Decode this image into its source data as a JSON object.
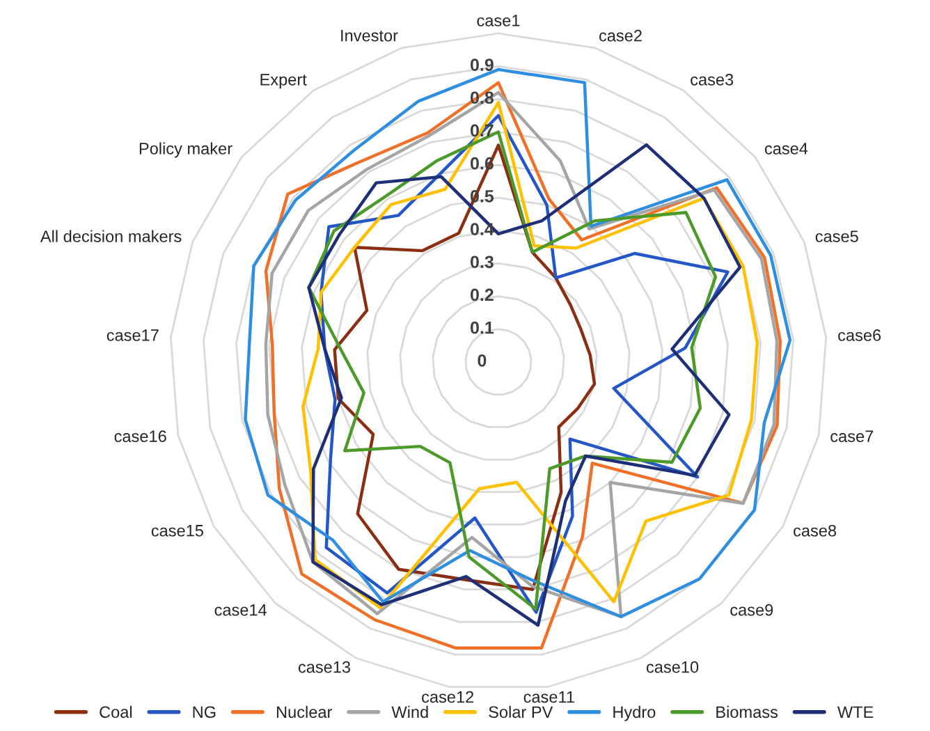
{
  "chart_data": {
    "type": "radar",
    "categories": [
      "case1",
      "case2",
      "case3",
      "case4",
      "case5",
      "case6",
      "case7",
      "case8",
      "case9",
      "case10",
      "case11",
      "case12",
      "case13",
      "case14",
      "case15",
      "case16",
      "case17",
      "All decision makers",
      "Policy maker",
      "Expert",
      "Investor"
    ],
    "series": [
      {
        "name": "Coal",
        "color": "#8b2f12",
        "values": [
          0.66,
          0.35,
          0.31,
          0.28,
          0.27,
          0.28,
          0.3,
          0.28,
          0.27,
          0.44,
          0.7,
          0.67,
          0.7,
          0.63,
          0.44,
          0.5,
          0.5,
          0.43,
          0.56,
          0.41,
          0.41
        ]
      },
      {
        "name": "NG",
        "color": "#2457c5",
        "values": [
          0.75,
          0.5,
          0.31,
          0.53,
          0.75,
          0.57,
          0.36,
          0.7,
          0.32,
          0.52,
          0.77,
          0.48,
          0.78,
          0.77,
          0.59,
          0.51,
          0.53,
          0.58,
          0.66,
          0.54,
          0.6
        ]
      },
      {
        "name": "Nuclear",
        "color": "#f07028",
        "values": [
          0.85,
          0.52,
          0.45,
          0.85,
          0.87,
          0.86,
          0.87,
          0.86,
          0.42,
          0.59,
          0.88,
          0.88,
          0.87,
          0.88,
          0.77,
          0.7,
          0.69,
          0.76,
          0.82,
          0.74,
          0.73
        ]
      },
      {
        "name": "Wind",
        "color": "#a5a5a5",
        "values": [
          0.82,
          0.64,
          0.49,
          0.84,
          0.86,
          0.85,
          0.86,
          0.86,
          0.5,
          0.86,
          0.69,
          0.54,
          0.85,
          0.83,
          0.75,
          0.72,
          0.71,
          0.74,
          0.74,
          0.71,
          0.72
        ]
      },
      {
        "name": "Solar PV",
        "color": "#ffc000",
        "values": [
          0.79,
          0.37,
          0.42,
          0.8,
          0.8,
          0.79,
          0.79,
          0.81,
          0.66,
          0.81,
          0.37,
          0.39,
          0.83,
          0.82,
          0.66,
          0.61,
          0.55,
          0.58,
          0.56,
          0.58,
          0.55
        ]
      },
      {
        "name": "Hydro",
        "color": "#2e8ee0",
        "values": [
          0.89,
          0.89,
          0.5,
          0.89,
          0.89,
          0.89,
          0.83,
          0.9,
          0.9,
          0.86,
          0.67,
          0.58,
          0.81,
          0.74,
          0.81,
          0.79,
          0.76,
          0.8,
          0.79,
          0.78,
          0.83
        ]
      },
      {
        "name": "Biomass",
        "color": "#4c9a2a",
        "values": [
          0.7,
          0.35,
          0.52,
          0.73,
          0.71,
          0.59,
          0.63,
          0.61,
          0.39,
          0.36,
          0.76,
          0.6,
          0.34,
          0.35,
          0.54,
          0.42,
          0.48,
          0.62,
          0.64,
          0.61,
          0.64
        ]
      },
      {
        "name": "WTE",
        "color": "#1e2f78",
        "values": [
          0.39,
          0.45,
          0.8,
          0.8,
          0.79,
          0.53,
          0.72,
          0.69,
          0.39,
          0.47,
          0.81,
          0.66,
          0.82,
          0.83,
          0.65,
          0.49,
          0.53,
          0.62,
          0.62,
          0.66,
          0.59
        ]
      }
    ],
    "ylim": [
      0,
      1
    ],
    "yticks": [
      0,
      0.1,
      0.2,
      0.3,
      0.4,
      0.5,
      0.6,
      0.7,
      0.8,
      0.9
    ],
    "grid": true,
    "legend": "bottom"
  }
}
